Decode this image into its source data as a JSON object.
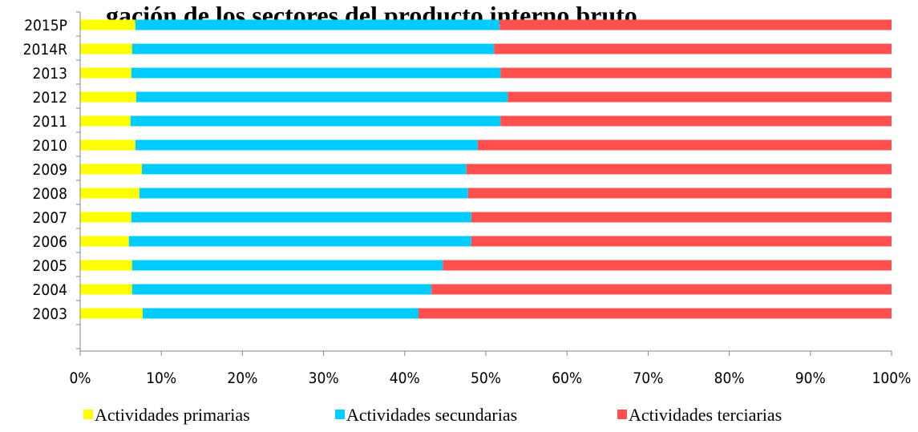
{
  "chart_data": {
    "type": "bar",
    "orientation": "horizontal",
    "stacked": "percent",
    "title": "…gación de los sectores del producto interno bruto",
    "categories": [
      "2015P",
      "2014R",
      "2013",
      "2012",
      "2011",
      "2010",
      "2009",
      "2008",
      "2007",
      "2006",
      "2005",
      "2004",
      "2003"
    ],
    "series": [
      {
        "name": "Actividades primarias",
        "color": "#FFFF00",
        "values": [
          6.8,
          6.4,
          6.3,
          6.9,
          6.2,
          6.8,
          7.6,
          7.3,
          6.3,
          6.0,
          6.4,
          6.4,
          7.7
        ]
      },
      {
        "name": "Actividades secundarias",
        "color": "#00CCFF",
        "values": [
          44.9,
          44.6,
          45.5,
          45.8,
          45.6,
          42.2,
          40.0,
          40.5,
          41.9,
          42.2,
          38.3,
          36.9,
          34.0
        ]
      },
      {
        "name": "Actividades terciarias",
        "color": "#FF5050",
        "values": [
          48.3,
          49.0,
          48.2,
          47.3,
          48.2,
          51.0,
          52.4,
          52.2,
          51.8,
          51.8,
          55.3,
          56.7,
          58.3
        ]
      }
    ],
    "x_ticks": [
      "0%",
      "10%",
      "20%",
      "30%",
      "40%",
      "50%",
      "60%",
      "70%",
      "80%",
      "90%",
      "100%"
    ],
    "xlim": [
      0,
      100
    ],
    "grid": false,
    "legend_position": "bottom"
  }
}
